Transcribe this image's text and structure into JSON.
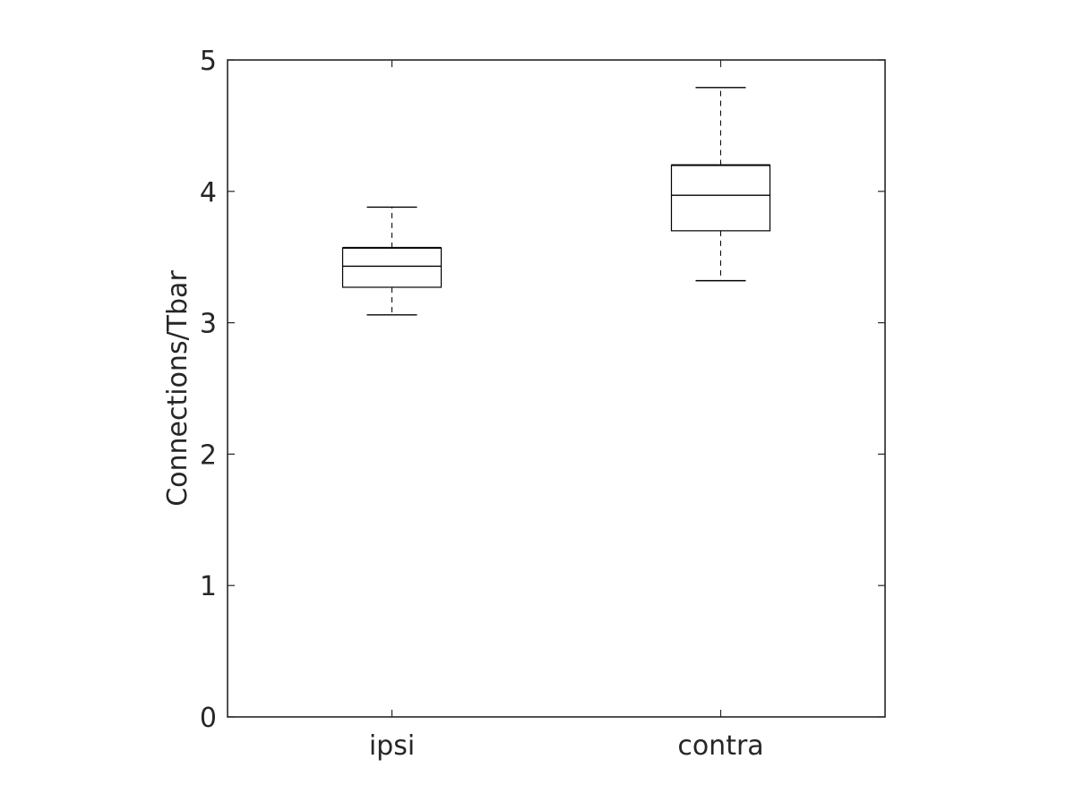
{
  "chart_data": {
    "type": "box",
    "categories": [
      "ipsi",
      "contra"
    ],
    "ylabel": "Connections/Tbar",
    "xlabel": "",
    "title": "",
    "ylim": [
      0,
      5
    ],
    "yticks": [
      "0",
      "1",
      "2",
      "3",
      "4",
      "5"
    ],
    "grid": false,
    "boxes": [
      {
        "category": "ipsi",
        "whisker_low": 3.06,
        "q1": 3.27,
        "median": 3.43,
        "q3": 3.57,
        "whisker_high": 3.88
      },
      {
        "category": "contra",
        "whisker_low": 3.32,
        "q1": 3.7,
        "median": 3.97,
        "q3": 4.2,
        "whisker_high": 4.79
      }
    ],
    "colors": {
      "axis": "#262626",
      "box": "#000000",
      "background": "#ffffff"
    }
  }
}
